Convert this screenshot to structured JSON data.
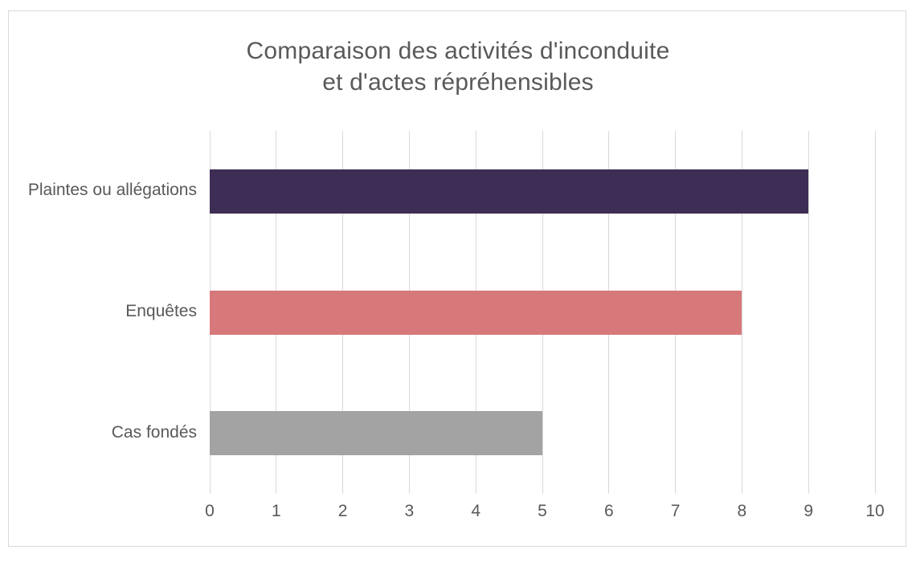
{
  "chart": {
    "title_line1": "Comparaison des activités d'inconduite",
    "title_line2": "et d'actes répréhensibles"
  },
  "chart_data": {
    "type": "bar",
    "orientation": "horizontal",
    "title": "Comparaison des activités d'inconduite et d'actes répréhensibles",
    "categories": [
      "Plaintes ou allégations",
      "Enquêtes",
      "Cas fondés"
    ],
    "values": [
      9,
      8,
      5
    ],
    "bar_colors": [
      "#3E2D54",
      "#D7797B",
      "#A3A3A3"
    ],
    "xlabel": "",
    "ylabel": "",
    "xlim": [
      0,
      10
    ],
    "xticks": [
      0,
      1,
      2,
      3,
      4,
      5,
      6,
      7,
      8,
      9,
      10
    ],
    "grid": "vertical",
    "legend": "none",
    "colors": {
      "text": "#595959",
      "gridline": "#D9D9D9",
      "chart_border": "#D9D9D9",
      "background": "#FFFFFF"
    }
  }
}
